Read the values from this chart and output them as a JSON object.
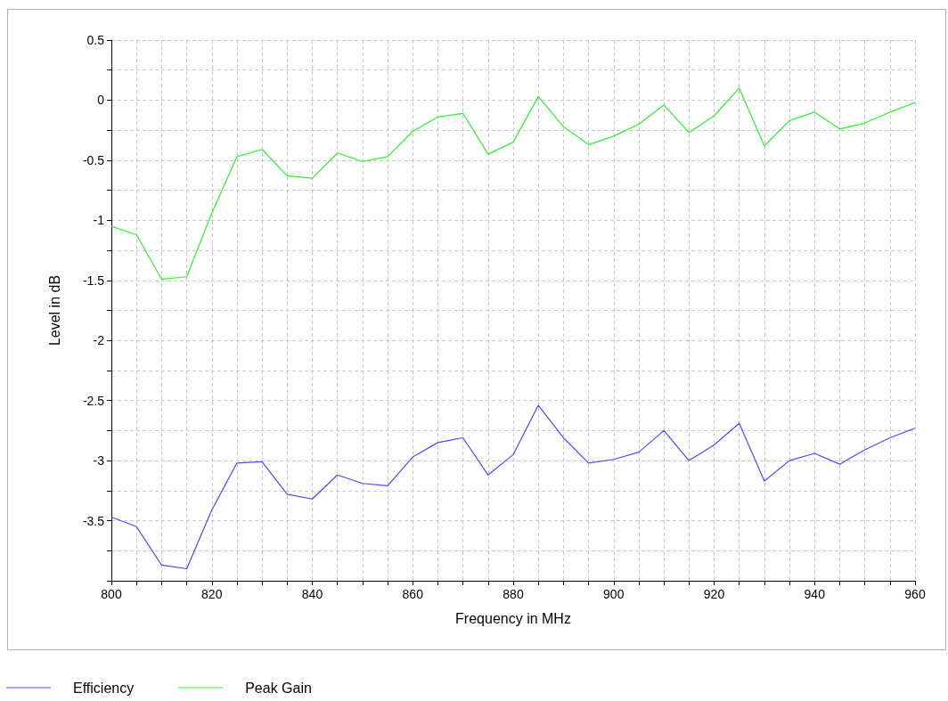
{
  "chart_data": {
    "type": "line",
    "xlabel": "Frequency in MHz",
    "ylabel": "Level in dB",
    "x": [
      800,
      805,
      810,
      815,
      820,
      825,
      830,
      835,
      840,
      845,
      850,
      855,
      860,
      865,
      870,
      875,
      880,
      885,
      890,
      895,
      900,
      905,
      910,
      915,
      920,
      925,
      930,
      935,
      940,
      945,
      950,
      955,
      960
    ],
    "series": [
      {
        "name": "Efficiency",
        "color": "#4a4aff",
        "values": [
          -3.47,
          -3.55,
          -3.87,
          -3.9,
          -3.41,
          -3.02,
          -3.01,
          -3.28,
          -3.32,
          -3.12,
          -3.19,
          -3.21,
          -2.97,
          -2.85,
          -2.81,
          -3.12,
          -2.95,
          -2.54,
          -2.81,
          -3.02,
          -2.99,
          -2.93,
          -2.75,
          -3.0,
          -2.87,
          -2.69,
          -3.17,
          -3.0,
          -2.94,
          -3.03,
          -2.91,
          -2.81,
          -2.73
        ]
      },
      {
        "name": "Peak Gain",
        "color": "#33ee33",
        "values": [
          -1.05,
          -1.12,
          -1.49,
          -1.47,
          -0.94,
          -0.47,
          -0.41,
          -0.63,
          -0.65,
          -0.44,
          -0.51,
          -0.47,
          -0.26,
          -0.14,
          -0.11,
          -0.45,
          -0.35,
          0.03,
          -0.22,
          -0.37,
          -0.3,
          -0.2,
          -0.04,
          -0.27,
          -0.13,
          0.1,
          -0.38,
          -0.17,
          -0.1,
          -0.24,
          -0.19,
          -0.1,
          -0.02
        ]
      }
    ],
    "xlim": [
      800,
      960
    ],
    "xticks": [
      800,
      {
        "value": 805,
        "label": null
      },
      {
        "value": 810,
        "label": null
      },
      {
        "value": 815,
        "label": null
      },
      820,
      {
        "value": 825,
        "label": null
      },
      {
        "value": 830,
        "label": null
      },
      {
        "value": 835,
        "label": null
      },
      840,
      {
        "value": 845,
        "label": null
      },
      {
        "value": 850,
        "label": null
      },
      {
        "value": 855,
        "label": null
      },
      860,
      {
        "value": 865,
        "label": null
      },
      {
        "value": 870,
        "label": null
      },
      {
        "value": 875,
        "label": null
      },
      880,
      {
        "value": 885,
        "label": null
      },
      {
        "value": 890,
        "label": null
      },
      {
        "value": 895,
        "label": null
      },
      900,
      {
        "value": 905,
        "label": null
      },
      {
        "value": 910,
        "label": null
      },
      {
        "value": 915,
        "label": null
      },
      920,
      {
        "value": 925,
        "label": null
      },
      {
        "value": 930,
        "label": null
      },
      {
        "value": 935,
        "label": null
      },
      940,
      {
        "value": 945,
        "label": null
      },
      {
        "value": 950,
        "label": null
      },
      {
        "value": 955,
        "label": null
      },
      960
    ],
    "ylim": [
      -4,
      0.5
    ],
    "yticks": [
      {
        "value": -4,
        "label": null
      },
      {
        "value": -3.75,
        "label": null
      },
      -3.5,
      {
        "value": -3.25,
        "label": null
      },
      -3,
      {
        "value": -2.75,
        "label": null
      },
      -2.5,
      {
        "value": -2.25,
        "label": null
      },
      -2,
      {
        "value": -1.75,
        "label": null
      },
      -1.5,
      {
        "value": -1.25,
        "label": null
      },
      -1,
      {
        "value": -0.75,
        "label": null
      },
      -0.5,
      {
        "value": -0.25,
        "label": null
      },
      0,
      {
        "value": 0.25,
        "label": null
      },
      0.5
    ],
    "grid": true,
    "legend": "bottom left",
    "marker": "none",
    "line_style": "solid"
  }
}
